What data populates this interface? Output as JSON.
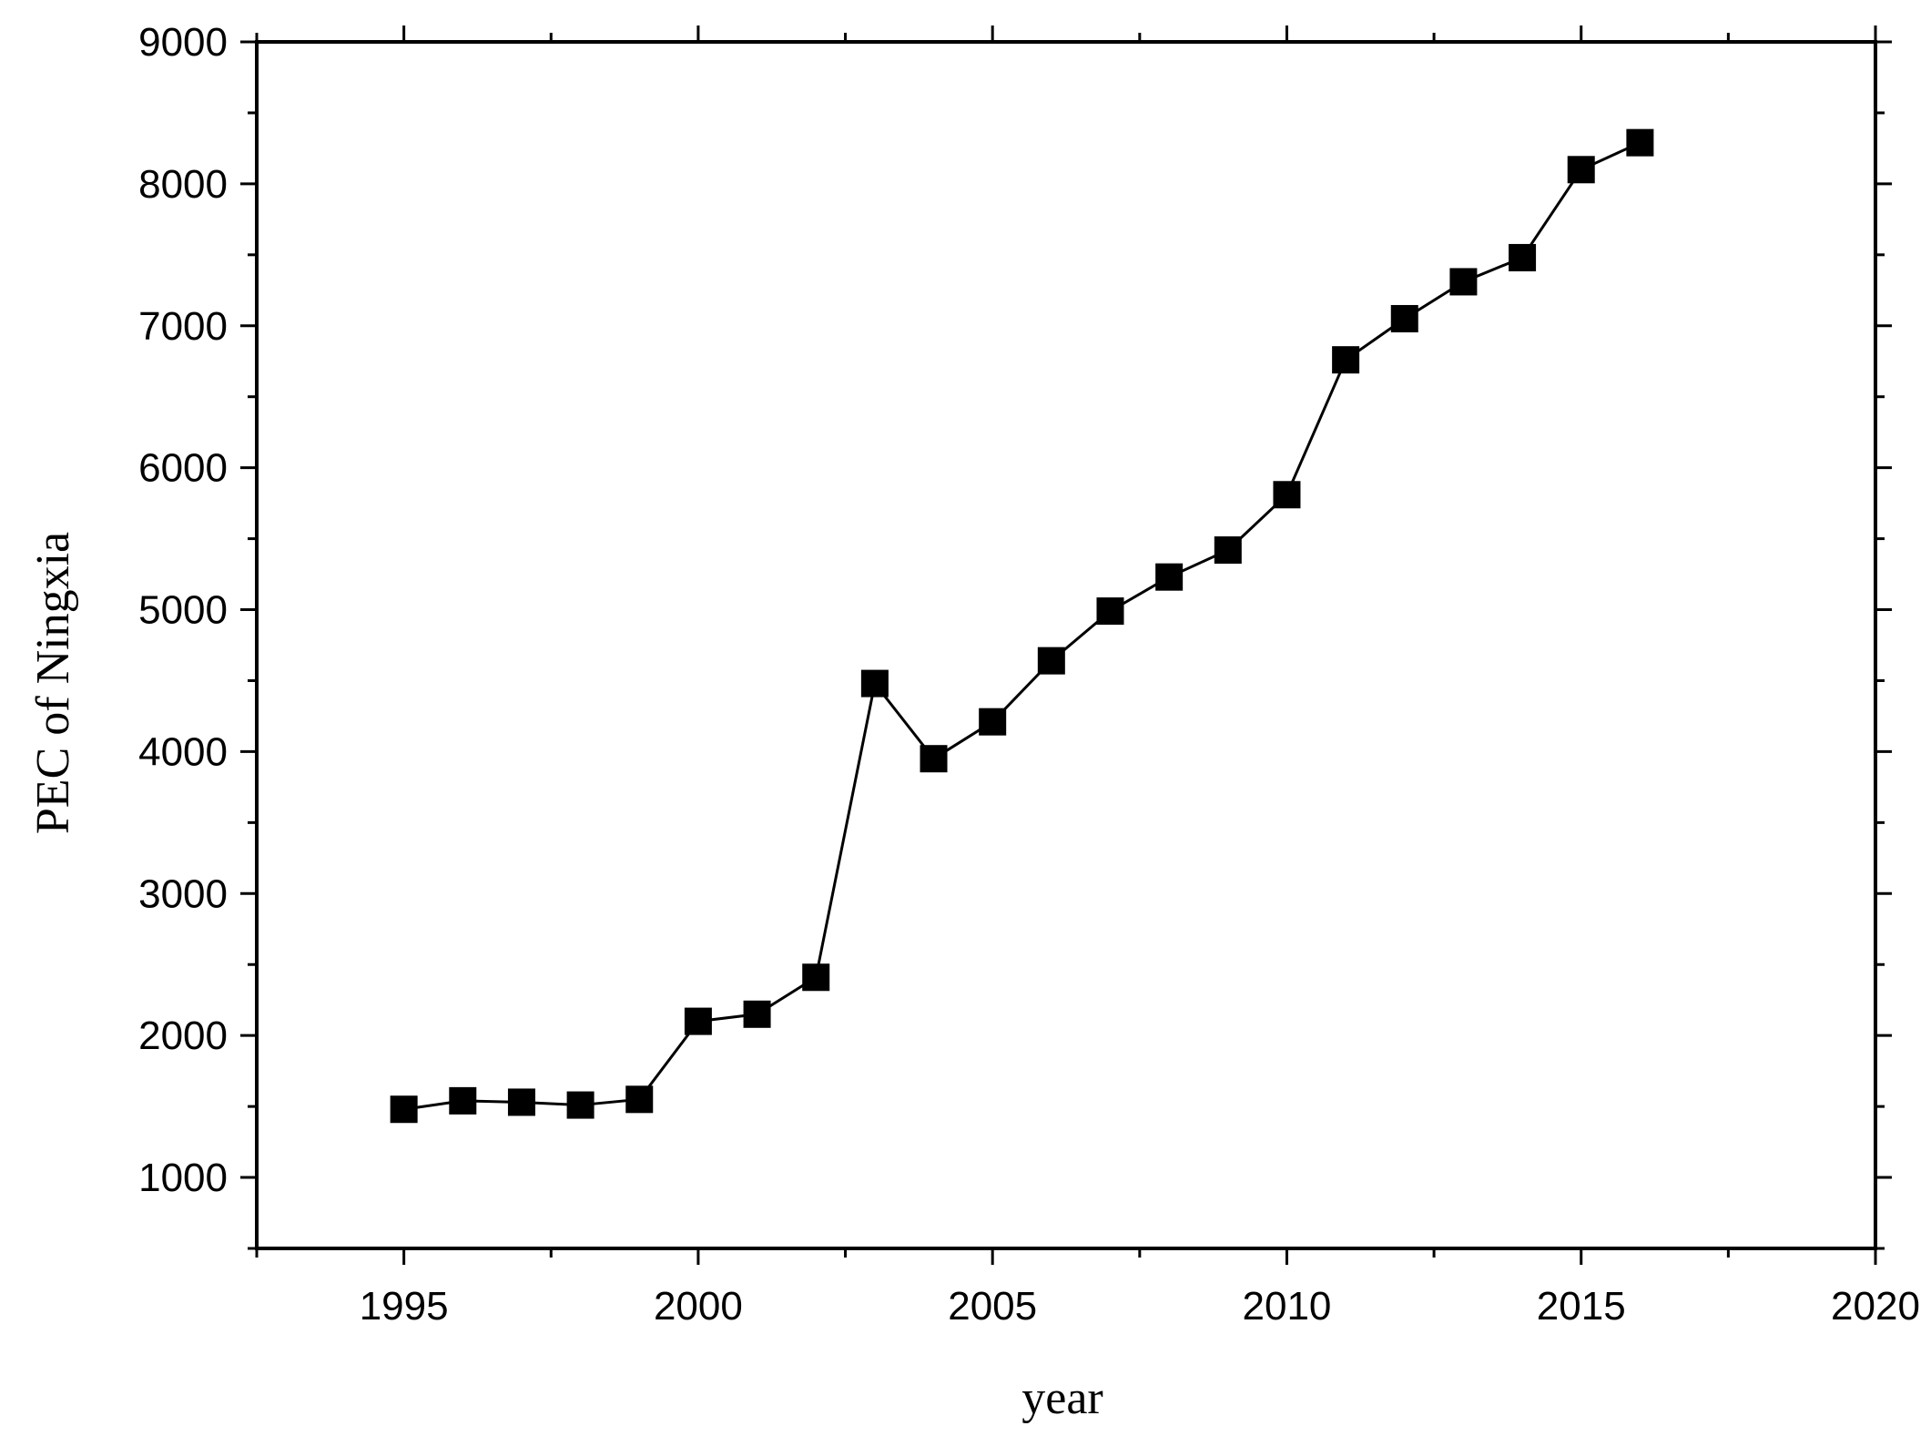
{
  "chart_data": {
    "type": "line",
    "xlabel": "year",
    "ylabel": "PEC of Ningxia",
    "xlim": [
      1992.5,
      2020
    ],
    "ylim": [
      500,
      9000
    ],
    "x_ticks": [
      1995,
      2000,
      2005,
      2010,
      2015,
      2020
    ],
    "y_ticks": [
      1000,
      2000,
      3000,
      4000,
      5000,
      6000,
      7000,
      8000,
      9000
    ],
    "marker": "square",
    "series": [
      {
        "x": [
          1995,
          1996,
          1997,
          1998,
          1999,
          2000,
          2001,
          2002,
          2003,
          2004,
          2005,
          2006,
          2007,
          2008,
          2009,
          2010,
          2011,
          2012,
          2013,
          2014,
          2015,
          2016
        ],
        "values": [
          1480,
          1540,
          1530,
          1510,
          1550,
          2100,
          2150,
          2410,
          4480,
          3950,
          4210,
          4640,
          4990,
          5230,
          5420,
          5810,
          6760,
          7050,
          7310,
          7480,
          8100,
          8290
        ]
      }
    ]
  }
}
